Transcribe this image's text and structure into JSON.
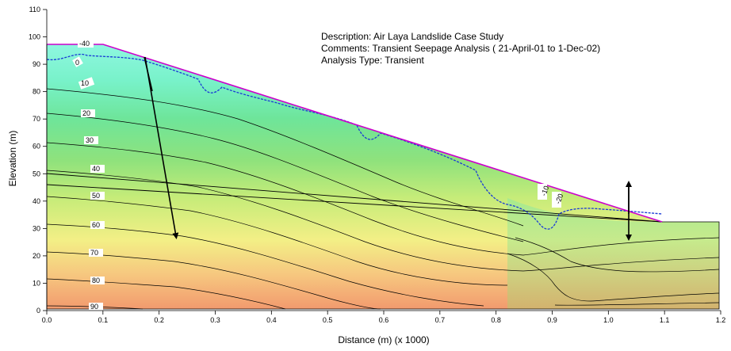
{
  "info": {
    "description": "Description: Air Laya Landslide Case Study",
    "comments": "Comments: Transient Seepage Analysis ( 21-April-01 to 1-Dec-02)",
    "analysis_type": "Analysis Type: Transient"
  },
  "axes": {
    "xlabel": "Distance (m) (x  1000)",
    "ylabel": "Elevation (m)",
    "x_ticks": [
      "0.0",
      "0.1",
      "0.2",
      "0.3",
      "0.4",
      "0.5",
      "0.6",
      "0.7",
      "0.8",
      "0.9",
      "1.0",
      "1.1",
      "1.2"
    ],
    "y_ticks": [
      "0",
      "10",
      "20",
      "30",
      "40",
      "50",
      "60",
      "70",
      "80",
      "90",
      "100",
      "110"
    ]
  },
  "contour_labels": [
    "-40",
    "0",
    "10",
    "20",
    "30",
    "40",
    "50",
    "60",
    "70",
    "80",
    "90",
    "-10",
    "-20"
  ],
  "colors": {
    "water_table": "#1a3ad6",
    "ground_surface": "#cc00cc",
    "contour": "#000000"
  }
}
